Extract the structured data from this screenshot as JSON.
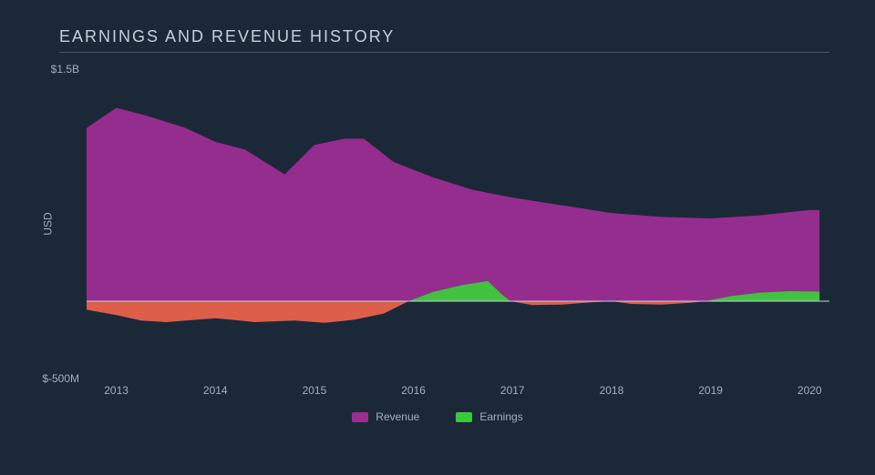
{
  "chart": {
    "type": "area",
    "title": "EARNINGS AND REVENUE HISTORY",
    "y_axis_label": "USD",
    "background_color": "#1b2838",
    "title_color": "#c5d0da",
    "tick_color": "#a0b0bd",
    "title_fontsize": 18,
    "tick_fontsize": 12,
    "legend_fontsize": 12,
    "rule_color": "#4a5866",
    "zero_line_color": "#c5d0da",
    "y_ticks": [
      {
        "label": "$1.5B",
        "value": 1500
      },
      {
        "label": "$-500M",
        "value": -500
      }
    ],
    "ylim": [
      -500,
      1500
    ],
    "x_ticks": [
      "2013",
      "2014",
      "2015",
      "2016",
      "2017",
      "2018",
      "2019",
      "2020"
    ],
    "x_domain": [
      2012.7,
      2020.2
    ],
    "series": [
      {
        "name": "Revenue",
        "color": "#9b2d91",
        "data": [
          {
            "x": 2012.7,
            "y": 1120
          },
          {
            "x": 2013.0,
            "y": 1250
          },
          {
            "x": 2013.3,
            "y": 1200
          },
          {
            "x": 2013.7,
            "y": 1120
          },
          {
            "x": 2014.0,
            "y": 1030
          },
          {
            "x": 2014.3,
            "y": 980
          },
          {
            "x": 2014.7,
            "y": 820
          },
          {
            "x": 2015.0,
            "y": 1010
          },
          {
            "x": 2015.3,
            "y": 1050
          },
          {
            "x": 2015.5,
            "y": 1050
          },
          {
            "x": 2015.8,
            "y": 900
          },
          {
            "x": 2016.2,
            "y": 800
          },
          {
            "x": 2016.6,
            "y": 720
          },
          {
            "x": 2017.0,
            "y": 670
          },
          {
            "x": 2017.5,
            "y": 620
          },
          {
            "x": 2018.0,
            "y": 570
          },
          {
            "x": 2018.5,
            "y": 545
          },
          {
            "x": 2019.0,
            "y": 535
          },
          {
            "x": 2019.5,
            "y": 555
          },
          {
            "x": 2020.0,
            "y": 590
          },
          {
            "x": 2020.1,
            "y": 590
          }
        ]
      },
      {
        "name": "Earnings",
        "color_positive": "#3dc93d",
        "color_negative": "#e8614a",
        "data": [
          {
            "x": 2012.7,
            "y": -55
          },
          {
            "x": 2013.0,
            "y": -90
          },
          {
            "x": 2013.25,
            "y": -125
          },
          {
            "x": 2013.5,
            "y": -135
          },
          {
            "x": 2014.0,
            "y": -110
          },
          {
            "x": 2014.4,
            "y": -135
          },
          {
            "x": 2014.8,
            "y": -125
          },
          {
            "x": 2015.1,
            "y": -140
          },
          {
            "x": 2015.4,
            "y": -120
          },
          {
            "x": 2015.7,
            "y": -80
          },
          {
            "x": 2015.95,
            "y": 0
          },
          {
            "x": 2016.2,
            "y": 60
          },
          {
            "x": 2016.5,
            "y": 105
          },
          {
            "x": 2016.75,
            "y": 130
          },
          {
            "x": 2016.9,
            "y": 40
          },
          {
            "x": 2016.98,
            "y": 0
          },
          {
            "x": 2017.2,
            "y": -25
          },
          {
            "x": 2017.5,
            "y": -22
          },
          {
            "x": 2017.8,
            "y": -7
          },
          {
            "x": 2018.0,
            "y": 0
          },
          {
            "x": 2018.2,
            "y": -18
          },
          {
            "x": 2018.5,
            "y": -22
          },
          {
            "x": 2018.8,
            "y": -10
          },
          {
            "x": 2018.95,
            "y": 0
          },
          {
            "x": 2019.2,
            "y": 32
          },
          {
            "x": 2019.5,
            "y": 55
          },
          {
            "x": 2019.8,
            "y": 65
          },
          {
            "x": 2020.1,
            "y": 62
          }
        ]
      }
    ],
    "legend": [
      {
        "label": "Revenue",
        "color": "#9b2d91"
      },
      {
        "label": "Earnings",
        "color": "#3dc93d"
      }
    ]
  }
}
